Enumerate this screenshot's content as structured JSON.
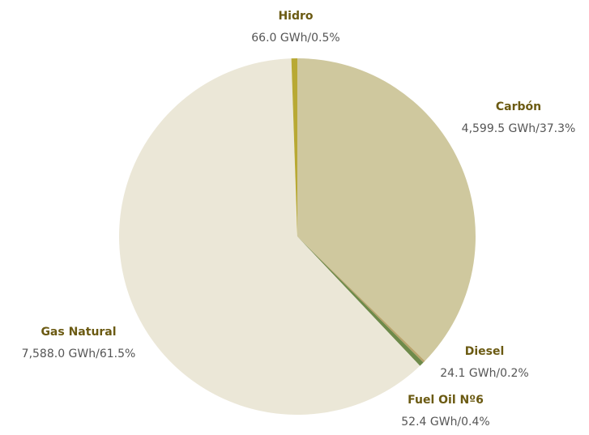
{
  "chart_data": {
    "type": "pie",
    "categories": [
      "Carbón",
      "Diesel",
      "Fuel Oil Nº6",
      "Gas Natural",
      "Hidro"
    ],
    "values": [
      4599.5,
      24.1,
      52.4,
      7588.0,
      66.0
    ],
    "value_labels": [
      "4,599.5 GWh/37.3%",
      "24.1 GWh/0.2%",
      "52.4 GWh/0.4%",
      "7,588.0 GWh/61.5%",
      "66.0 GWh/0.5%"
    ],
    "colors": [
      "#cfc89e",
      "#b9a36b",
      "#6e8a4a",
      "#ebe7d7",
      "#b8a934"
    ]
  }
}
